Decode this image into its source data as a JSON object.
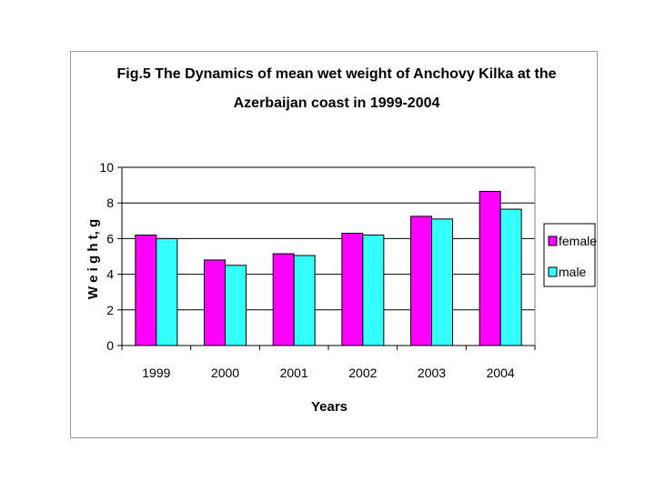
{
  "chart_data": {
    "type": "bar",
    "title_lines": [
      "Fig.5 The Dynamics of mean wet weight of Anchovy Kilka at the",
      "Azerbaijan coast in 1999-2004"
    ],
    "xlabel": "Years",
    "ylabel": "W e i g h t, g",
    "categories": [
      "1999",
      "2000",
      "2001",
      "2002",
      "2003",
      "2004"
    ],
    "ylim": [
      0,
      10
    ],
    "yticks": [
      "0",
      "2",
      "4",
      "6",
      "8",
      "10"
    ],
    "series": [
      {
        "name": "female",
        "color": "#ff00ff",
        "values": [
          6.2,
          4.8,
          5.15,
          6.3,
          7.25,
          8.65
        ]
      },
      {
        "name": "male",
        "color": "#33ffff",
        "values": [
          6.0,
          4.5,
          5.05,
          6.2,
          7.1,
          7.65
        ]
      }
    ],
    "grid": "horizontal",
    "legend": "right"
  }
}
